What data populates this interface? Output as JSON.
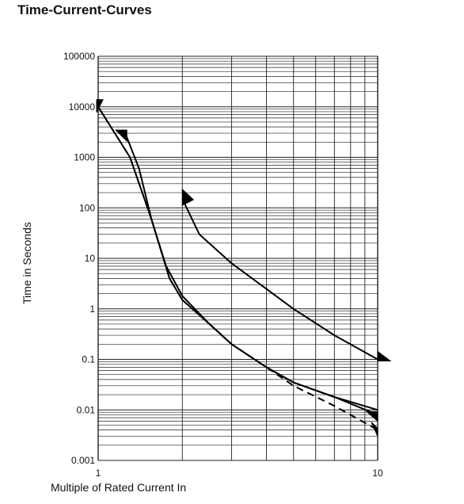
{
  "title": "Time-Current-Curves",
  "chart_data": {
    "type": "line",
    "title": "Time-Current-Curves",
    "xlabel": "Multiple of Rated Current In",
    "ylabel": "Time in Seconds",
    "x_scale": "log",
    "y_scale": "log",
    "xlim": [
      1,
      10
    ],
    "ylim": [
      0.001,
      100000
    ],
    "x_ticks": [
      "1",
      "10"
    ],
    "y_ticks": [
      "0.001",
      "0.01",
      "0.1",
      "1",
      "10",
      "100",
      "1000",
      "10000",
      "100000"
    ],
    "grid": true,
    "series": [
      {
        "style": "dashed",
        "x": [
          1.0,
          1.3,
          1.55,
          1.8,
          2.0,
          2.5,
          3.0,
          4.0,
          5.0,
          7.0,
          10.0
        ],
        "y": [
          10000,
          1000,
          60,
          4,
          1.5,
          0.5,
          0.2,
          0.07,
          0.03,
          0.012,
          0.004
        ]
      },
      {
        "style": "solid",
        "x": [
          1.0,
          1.3,
          1.55,
          1.8,
          2.0,
          2.5,
          3.0,
          4.0,
          5.0,
          7.0,
          10.0
        ],
        "y": [
          10000,
          1000,
          60,
          4,
          1.5,
          0.5,
          0.2,
          0.07,
          0.035,
          0.018,
          0.01
        ]
      },
      {
        "style": "solid",
        "x": [
          1.25,
          1.4,
          1.55,
          1.75,
          2.0,
          2.5,
          3.0,
          4.0,
          5.0,
          7.0,
          10.0
        ],
        "y": [
          3000,
          600,
          60,
          7,
          1.8,
          0.5,
          0.2,
          0.07,
          0.035,
          0.018,
          0.008
        ]
      },
      {
        "style": "solid",
        "x": [
          2.0,
          2.3,
          3.0,
          5.0,
          7.0,
          10.0
        ],
        "y": [
          150,
          30,
          8,
          1.0,
          0.3,
          0.1
        ]
      }
    ]
  }
}
